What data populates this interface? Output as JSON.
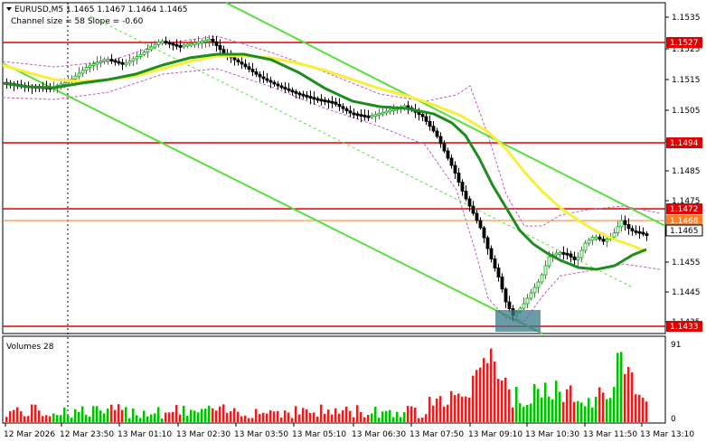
{
  "header": {
    "symbol_line": "EURUSD,M5  1.1465 1.1467 1.1464 1.1465",
    "channel_line": "Channel size = 58 Slope = -0.60"
  },
  "volume_panel": {
    "label": "Volumes 28",
    "scale_top": "91",
    "scale_bottom": "0"
  },
  "price_axis": {
    "ticks": [
      "1.1535",
      "1.1525",
      "1.1515",
      "1.1505",
      "1.1495",
      "1.1485",
      "1.1475",
      "1.1465",
      "1.1455",
      "1.1445",
      "1.1435"
    ]
  },
  "price_levels": [
    {
      "label": "1.1527",
      "color": "#e00000"
    },
    {
      "label": "1.1494",
      "color": "#e00000"
    },
    {
      "label": "1.1472",
      "color": "#e00000"
    },
    {
      "label": "1.1468",
      "color": "#ff7f27"
    },
    {
      "label": "1.1433",
      "color": "#e00000"
    }
  ],
  "current_price": {
    "label": "1.1465"
  },
  "time_axis": {
    "labels": [
      "12 Mar 2026",
      "12 Mar 23:50",
      "13 Mar 01:10",
      "13 Mar 02:30",
      "13 Mar 03:50",
      "13 Mar 05:10",
      "13 Mar 06:30",
      "13 Mar 07:50",
      "13 Mar 09:10",
      "13 Mar 10:30",
      "13 Mar 11:50",
      "13 Mar 13:10"
    ]
  },
  "colors": {
    "bull_candle": "#00b000",
    "bear_candle": "#000000",
    "fast_ma": "#f7ef3a",
    "slow_ma": "#1e8c1e",
    "channel": "#55e03c",
    "envelope": "#c060c0",
    "volume": "#00c000",
    "volume_down": "#e02020"
  }
}
